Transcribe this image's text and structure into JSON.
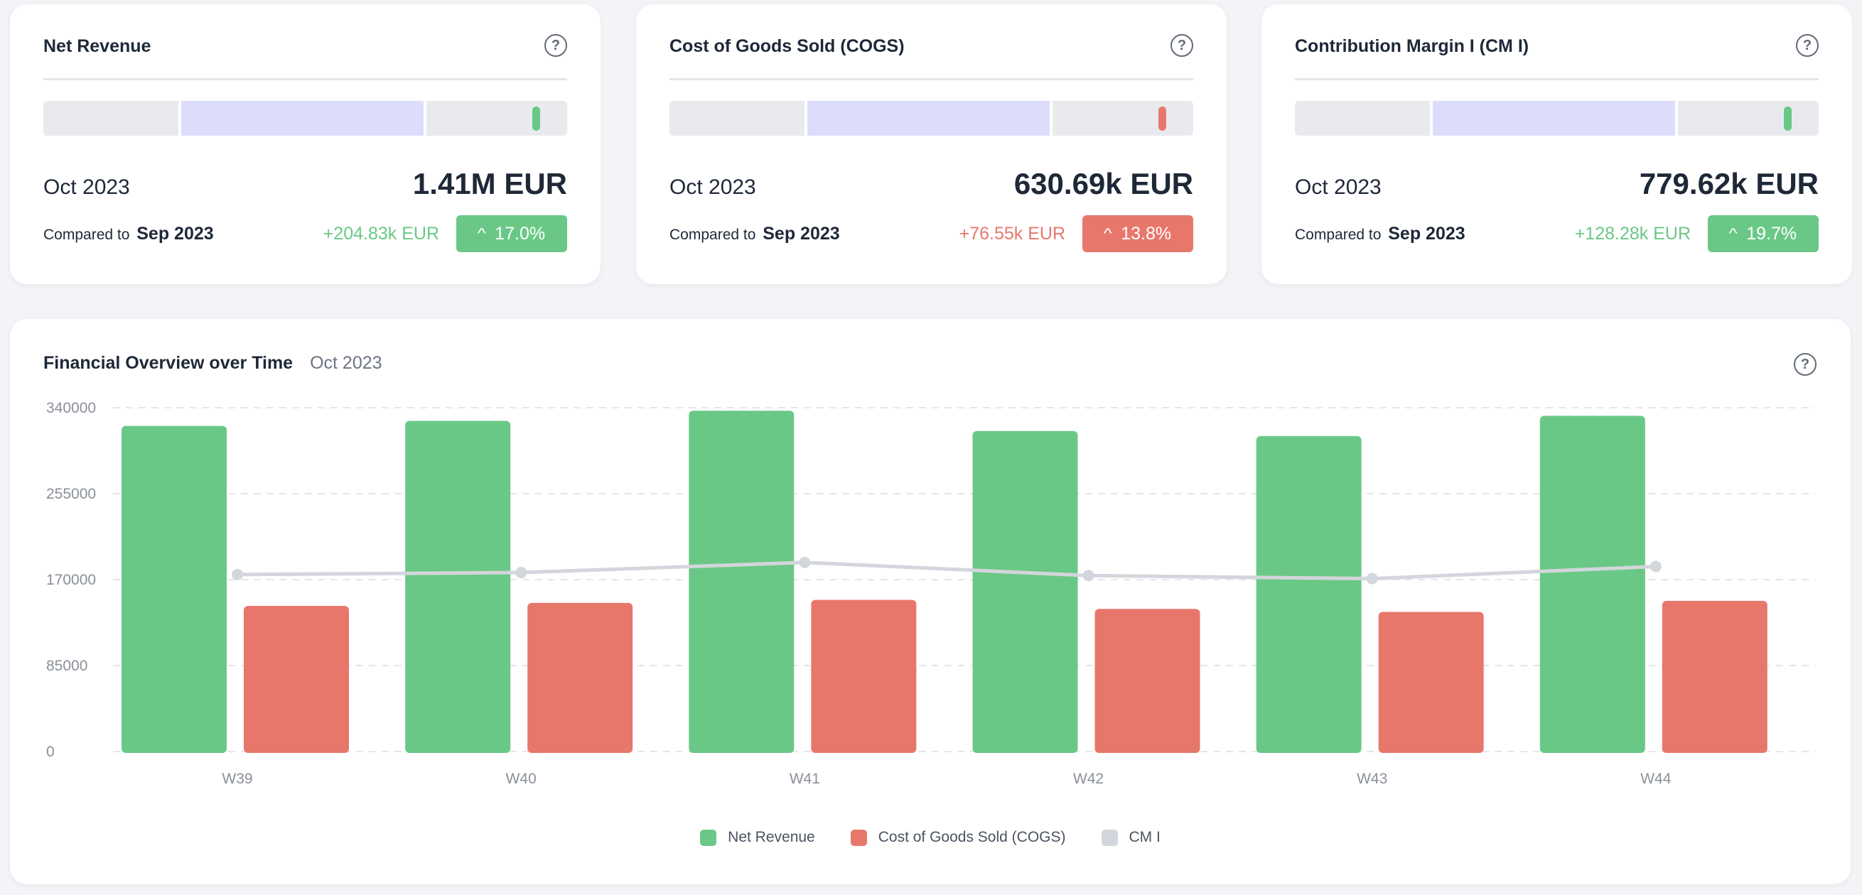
{
  "kpis": [
    {
      "title": "Net Revenue",
      "period": "Oct 2023",
      "value": "1.41M EUR",
      "compare_prefix": "Compared to",
      "compare_period": "Sep 2023",
      "delta": "+204.83k EUR",
      "change": "17.0%",
      "change_arrow": "^",
      "status_color": "#6ac886",
      "marker_color": "#6ac886",
      "marker_position": 0.94
    },
    {
      "title": "Cost of Goods Sold (COGS)",
      "period": "Oct 2023",
      "value": "630.69k EUR",
      "compare_prefix": "Compared to",
      "compare_period": "Sep 2023",
      "delta": "+76.55k EUR",
      "change": "13.8%",
      "change_arrow": "^",
      "status_color": "#e8776b",
      "marker_color": "#e8776b",
      "marker_position": 0.94
    },
    {
      "title": "Contribution Margin I (CM I)",
      "period": "Oct 2023",
      "value": "779.62k EUR",
      "compare_prefix": "Compared to",
      "compare_period": "Sep 2023",
      "delta": "+128.28k EUR",
      "change": "19.7%",
      "change_arrow": "^",
      "status_color": "#6ac886",
      "marker_color": "#6ac886",
      "marker_position": 0.94
    }
  ],
  "overview": {
    "title": "Financial Overview over Time",
    "period": "Oct 2023"
  },
  "icons": {
    "help": "question-circle-icon",
    "up": "chevron-up-icon"
  },
  "help_glyph": "?",
  "chart_data": {
    "type": "bar",
    "categories": [
      "W39",
      "W40",
      "W41",
      "W42",
      "W43",
      "W44"
    ],
    "yticks": [
      "340000",
      "255000",
      "170000",
      "85000",
      "0"
    ],
    "ylim": [
      0,
      340000
    ],
    "grid": true,
    "legend_position": "bottom",
    "series": [
      {
        "name": "Net Revenue",
        "type": "bar",
        "color": "#6ac886",
        "values": [
          322000,
          327000,
          337000,
          317000,
          312000,
          332000
        ]
      },
      {
        "name": "Cost of Goods Sold (COGS)",
        "type": "bar",
        "color": "#e8776b",
        "values": [
          144000,
          147000,
          150000,
          141000,
          138000,
          149000
        ]
      },
      {
        "name": "CM I",
        "type": "line",
        "color": "#d3d6dc",
        "values": [
          175000,
          177000,
          187000,
          174000,
          171000,
          183000
        ]
      }
    ]
  }
}
